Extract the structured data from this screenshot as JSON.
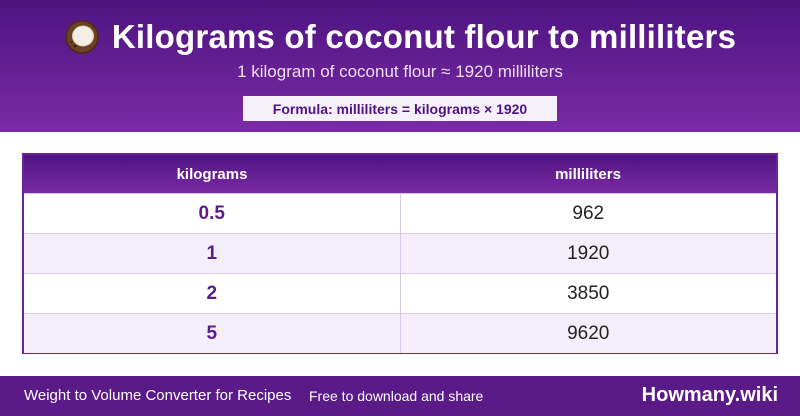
{
  "header": {
    "icon": "coconut-icon",
    "title": "Kilograms of coconut flour to milliliters",
    "subtitle": "1 kilogram of coconut flour ≈ 1920 milliliters",
    "formula": "Formula: milliliters = kilograms × 1920"
  },
  "table": {
    "columns": [
      "kilograms",
      "milliliters"
    ],
    "rows": [
      {
        "kilograms": "0.5",
        "milliliters": "962"
      },
      {
        "kilograms": "1",
        "milliliters": "1920"
      },
      {
        "kilograms": "2",
        "milliliters": "3850"
      },
      {
        "kilograms": "5",
        "milliliters": "9620"
      }
    ]
  },
  "footer": {
    "left_text": "Weight to Volume Converter for Recipes",
    "middle_text": "Free to download and share",
    "brand": "Howmany.wiki"
  },
  "colors": {
    "header_gradient_top": "#4e1480",
    "header_gradient_bottom": "#7a2aa5",
    "accent_text": "#5a1c86",
    "alt_row": "#f4eefa",
    "footer_bg": "#5a1a88"
  }
}
